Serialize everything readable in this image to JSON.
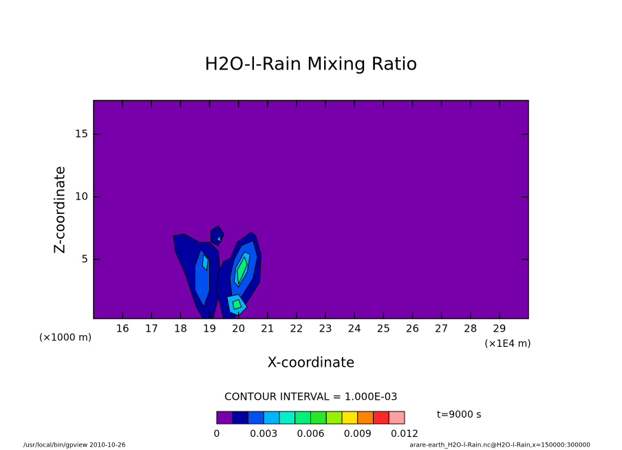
{
  "chart_data": {
    "type": "contour",
    "title": "H2O-l-Rain Mixing Ratio",
    "xlabel": "X-coordinate",
    "ylabel": "Z-coordinate",
    "xunit": "(×1E4 m)",
    "yunit": "(×1000 m)",
    "xlim": [
      15,
      30
    ],
    "ylim": [
      0.27,
      17.7
    ],
    "xticks": [
      16,
      17,
      18,
      19,
      20,
      21,
      22,
      23,
      24,
      25,
      26,
      27,
      28,
      29
    ],
    "yticks": [
      5,
      10,
      15
    ],
    "contour_interval_label": "CONTOUR INTERVAL = 1.000E-03",
    "time_label": "t=9000 s",
    "footer_left": "/usr/local/bin/gpview  2010-10-26",
    "footer_right": "arare-earth_H2O-l-Rain.nc@H2O-l-Rain,x=150000:300000",
    "colorbar": {
      "levels": [
        0,
        0.001,
        0.002,
        0.003,
        0.004,
        0.005,
        0.006,
        0.007,
        0.008,
        0.009,
        0.01,
        0.011,
        0.012
      ],
      "colors": [
        "#7800aa",
        "#0000a0",
        "#0050f0",
        "#00b4ff",
        "#00f0c8",
        "#00f078",
        "#28e628",
        "#96f000",
        "#ffe600",
        "#ff8200",
        "#ff2828",
        "#ffa0a0"
      ],
      "ticks": [
        0,
        0.003,
        0.006,
        0.009,
        0.012
      ]
    },
    "regions": [
      {
        "level": 0.001,
        "x": [
          17.75,
          18.13,
          18.65,
          19.0,
          19.31,
          19.36,
          19.31,
          19.12,
          18.77,
          18.53,
          18.18,
          17.82
        ],
        "z": [
          6.92,
          7.03,
          6.37,
          6.37,
          5.65,
          3.73,
          2.08,
          0.27,
          0.27,
          1.26,
          3.73,
          5.65
        ]
      },
      {
        "level": 0.001,
        "x": [
          19.72,
          19.95,
          20.43,
          20.59,
          20.78,
          20.73,
          20.43,
          20.19,
          19.83,
          19.48,
          19.24,
          19.31,
          19.48
        ],
        "z": [
          5.1,
          6.37,
          7.19,
          6.92,
          5.38,
          3.18,
          2.08,
          1.26,
          0.27,
          0.27,
          2.63,
          4.0,
          4.83
        ]
      },
      {
        "level": 0.001,
        "x": [
          19.05,
          19.3,
          19.5,
          19.3,
          19.05
        ],
        "z": [
          7.3,
          7.7,
          7.0,
          6.1,
          6.4
        ]
      },
      {
        "level": 0.002,
        "x": [
          18.7,
          19.0,
          19.0,
          18.8,
          18.5,
          18.5
        ],
        "z": [
          5.8,
          5.0,
          2.5,
          1.2,
          2.5,
          4.5
        ]
      },
      {
        "level": 0.002,
        "x": [
          19.85,
          20.1,
          20.5,
          20.65,
          20.5,
          20.1,
          19.8,
          19.7
        ],
        "z": [
          5.0,
          6.1,
          6.5,
          5.2,
          3.5,
          2.0,
          1.5,
          3.5
        ]
      },
      {
        "level": 0.003,
        "x": [
          18.8,
          18.95,
          18.9,
          18.75
        ],
        "z": [
          5.4,
          5.0,
          4.1,
          4.5
        ]
      },
      {
        "level": 0.003,
        "x": [
          19.9,
          20.2,
          20.4,
          20.3,
          20.0,
          19.85
        ],
        "z": [
          4.3,
          5.6,
          5.4,
          4.0,
          2.8,
          3.2
        ]
      },
      {
        "level": 0.003,
        "x": [
          19.25,
          19.35,
          19.4
        ],
        "z": [
          6.6,
          6.9,
          6.4
        ]
      },
      {
        "level": 0.003,
        "x": [
          19.6,
          20.0,
          20.3,
          20.0,
          19.7
        ],
        "z": [
          2.0,
          2.2,
          1.2,
          0.5,
          0.8
        ]
      },
      {
        "level": 0.005,
        "x": [
          19.95,
          20.2,
          20.3,
          20.0
        ],
        "z": [
          4.1,
          5.2,
          4.6,
          3.0
        ]
      },
      {
        "level": 0.005,
        "x": [
          19.8,
          20.0,
          20.1,
          19.85
        ],
        "z": [
          1.6,
          1.8,
          1.2,
          1.0
        ]
      }
    ]
  }
}
